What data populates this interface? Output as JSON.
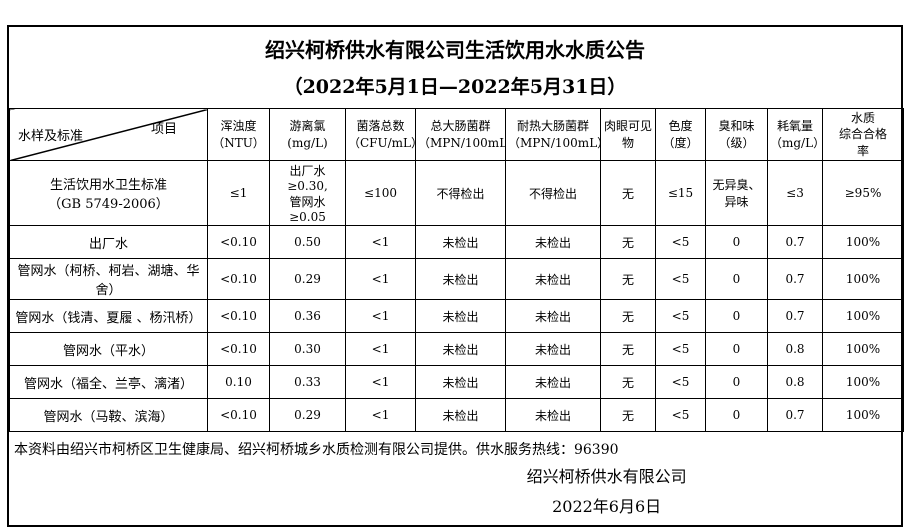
{
  "title": "绍兴柯桥供水有限公司生活饮用水水质公告",
  "subtitle": "（2022年5月1日—2022年5月31日）",
  "table": {
    "corner": {
      "top_right": "项目",
      "bottom_left": "水样及标准"
    },
    "columns": [
      "浑浊度\n（NTU）",
      "游离氯 (mg/L)",
      "菌落总数\n（CFU/mL）",
      "总大肠菌群\n（MPN/100mL）",
      "耐热大肠菌群\n（MPN/100mL）",
      "肉眼可见\n物",
      "色度\n（度）",
      "臭和味\n（级）",
      "耗氧量\n（mg/L）",
      "水质\n综合合格\n率"
    ],
    "rows": [
      {
        "name": "生活饮用水卫生标准\n（GB 5749-2006）",
        "values": [
          "≤1",
          "出厂水≥0.30,\n管网水≥0.05",
          "≤100",
          "不得检出",
          "不得检出",
          "无",
          "≤15",
          "无异臭、\n异味",
          "≤3",
          "≥95%"
        ]
      },
      {
        "name": "出厂水",
        "values": [
          "<0.10",
          "0.50",
          "<1",
          "未检出",
          "未检出",
          "无",
          "<5",
          "0",
          "0.7",
          "100%"
        ]
      },
      {
        "name": "管网水（柯桥、柯岩、湖塘、华舍）",
        "values": [
          "<0.10",
          "0.29",
          "<1",
          "未检出",
          "未检出",
          "无",
          "<5",
          "0",
          "0.7",
          "100%"
        ]
      },
      {
        "name": "管网水（钱清、夏履 、杨汛桥）",
        "values": [
          "<0.10",
          "0.36",
          "<1",
          "未检出",
          "未检出",
          "无",
          "<5",
          "0",
          "0.7",
          "100%"
        ]
      },
      {
        "name": "管网水（平水）",
        "values": [
          "<0.10",
          "0.30",
          "<1",
          "未检出",
          "未检出",
          "无",
          "<5",
          "0",
          "0.8",
          "100%"
        ]
      },
      {
        "name": "管网水（福全、兰亭、漓渚）",
        "values": [
          "0.10",
          "0.33",
          "<1",
          "未检出",
          "未检出",
          "无",
          "<5",
          "0",
          "0.8",
          "100%"
        ]
      },
      {
        "name": "管网水（马鞍、滨海）",
        "values": [
          "<0.10",
          "0.29",
          "<1",
          "未检出",
          "未检出",
          "无",
          "<5",
          "0",
          "0.7",
          "100%"
        ]
      }
    ]
  },
  "footer": {
    "note": "本资料由绍兴市柯桥区卫生健康局、绍兴柯桥城乡水质检测有限公司提供。供水服务热线：96390",
    "signature": "绍兴柯桥供水有限公司",
    "date": "2022年6月6日"
  }
}
